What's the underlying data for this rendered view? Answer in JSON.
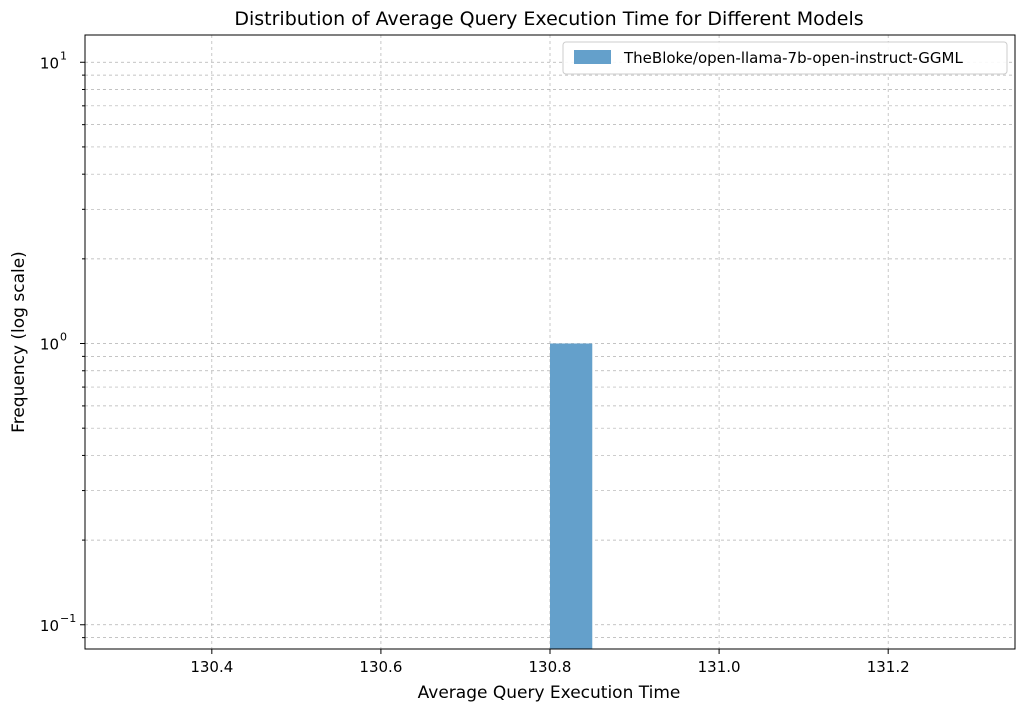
{
  "chart_data": {
    "type": "bar",
    "title": "Distribution of Average Query Execution Time for Different Models",
    "xlabel": "Average Query Execution Time",
    "ylabel": "Frequency (log scale)",
    "yscale": "log",
    "xlim": [
      130.25,
      131.35
    ],
    "ylim": [
      0.082,
      12.5
    ],
    "x_ticks": [
      130.4,
      130.6,
      130.8,
      131.0,
      131.2
    ],
    "x_tick_labels": [
      "130.4",
      "130.6",
      "130.8",
      "131.0",
      "131.2"
    ],
    "y_ticks": [
      0.1,
      1,
      10
    ],
    "y_tick_labels": [
      {
        "base": "10",
        "exp": "−1"
      },
      {
        "base": "10",
        "exp": "0"
      },
      {
        "base": "10",
        "exp": "1"
      }
    ],
    "grid": true,
    "legend_position": "top-right",
    "series": [
      {
        "name": "TheBloke/open-llama-7b-open-instruct-GGML",
        "color": "#64a0cb",
        "bins": [
          {
            "x0": 130.8,
            "x1": 130.85,
            "count": 1
          }
        ]
      }
    ]
  }
}
